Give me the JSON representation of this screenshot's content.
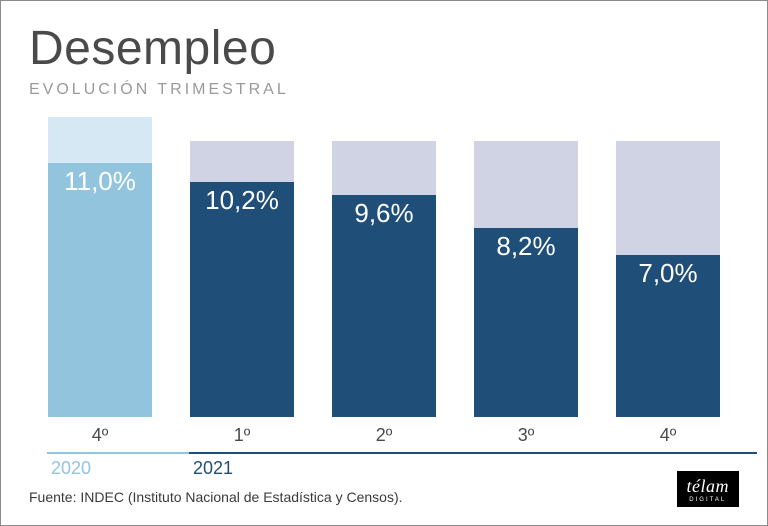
{
  "title": "Desempleo",
  "subtitle": "EVOLUCIÓN TRIMESTRAL",
  "chart": {
    "type": "bar",
    "max_value": 13.0,
    "background_color": "#ffffff",
    "label_color": "#ffffff",
    "label_fontsize": 26,
    "bars": [
      {
        "quarter": "4º",
        "year_group": "2020",
        "value": 11.0,
        "label": "11,0%",
        "fill_color": "#92c4de",
        "bg_color": "#d6e8f3",
        "bg_height_ratio": 1.0
      },
      {
        "quarter": "1º",
        "year_group": "2021",
        "value": 10.2,
        "label": "10,2%",
        "fill_color": "#1f4e79",
        "bg_color": "#cfd3e3",
        "bg_height_ratio": 0.92
      },
      {
        "quarter": "2º",
        "year_group": "2021",
        "value": 9.6,
        "label": "9,6%",
        "fill_color": "#1f4e79",
        "bg_color": "#cfd3e3",
        "bg_height_ratio": 0.92
      },
      {
        "quarter": "3º",
        "year_group": "2021",
        "value": 8.2,
        "label": "8,2%",
        "fill_color": "#1f4e79",
        "bg_color": "#cfd3e3",
        "bg_height_ratio": 0.92
      },
      {
        "quarter": "4º",
        "year_group": "2021",
        "value": 7.0,
        "label": "7,0%",
        "fill_color": "#1f4e79",
        "bg_color": "#cfd3e3",
        "bg_height_ratio": 0.92
      }
    ],
    "year_groups": [
      {
        "label": "2020",
        "color": "#92c4de",
        "span": 1
      },
      {
        "label": "2021",
        "color": "#1f4e79",
        "span": 4
      }
    ]
  },
  "source": "Fuente: INDEC (Instituto Nacional de Estadística y Censos).",
  "logo": {
    "main": "télam",
    "sub": "DIGITAL",
    "bg": "#000000",
    "fg": "#ffffff"
  }
}
